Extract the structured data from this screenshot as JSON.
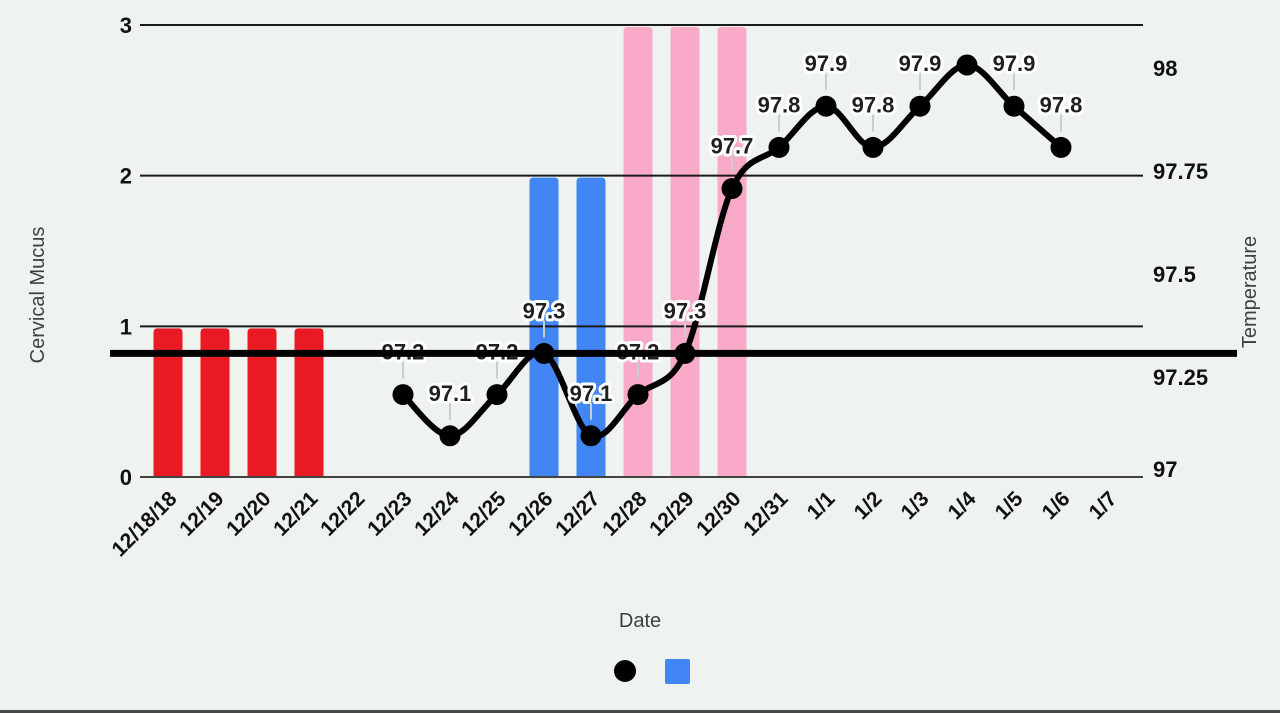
{
  "chart_data": {
    "type": "combo",
    "description": "Fertility tracking chart: cervical mucus bars (left axis) + basal body temperature line (right axis)",
    "categories": [
      "12/18/18",
      "12/19",
      "12/20",
      "12/21",
      "12/22",
      "12/23",
      "12/24",
      "12/25",
      "12/26",
      "12/27",
      "12/28",
      "12/29",
      "12/30",
      "12/31",
      "1/1",
      "1/2",
      "1/3",
      "1/4",
      "1/5",
      "1/6",
      "1/7"
    ],
    "x_axis": {
      "title": "Date"
    },
    "left_axis": {
      "title": "Cervical Mucus",
      "range": [
        0,
        3
      ],
      "ticks": [
        0,
        1,
        2,
        3
      ]
    },
    "right_axis": {
      "title": "Temperature",
      "range": [
        97,
        98
      ],
      "ticks": [
        {
          "label": "97",
          "value": 97
        },
        {
          "label": "97.25",
          "value": 97.25
        },
        {
          "label": "97.5",
          "value": 97.5
        },
        {
          "label": "97.75",
          "value": 97.75
        },
        {
          "label": "98",
          "value": 98
        }
      ]
    },
    "grid": true,
    "legend_position": "bottom",
    "series": [
      {
        "name": "cervical-mucus-bars",
        "type": "bar",
        "axis": "left",
        "default_color": "#4285f4",
        "points": [
          {
            "category": "12/18/18",
            "value": 1,
            "color": "#ea1a24"
          },
          {
            "category": "12/19",
            "value": 1,
            "color": "#ea1a24"
          },
          {
            "category": "12/20",
            "value": 1,
            "color": "#ea1a24"
          },
          {
            "category": "12/21",
            "value": 1,
            "color": "#ea1a24"
          },
          {
            "category": "12/26",
            "value": 2,
            "color": "#4285f4"
          },
          {
            "category": "12/27",
            "value": 2,
            "color": "#4285f4"
          },
          {
            "category": "12/28",
            "value": 3,
            "color": "#f9aac8"
          },
          {
            "category": "12/29",
            "value": 3,
            "color": "#f9aac8"
          },
          {
            "category": "12/30",
            "value": 3,
            "color": "#f9aac8"
          }
        ]
      },
      {
        "name": "temperature-line",
        "type": "line",
        "axis": "right",
        "color": "#000000",
        "points": [
          {
            "category": "12/23",
            "value": 97.2,
            "label": "97.2"
          },
          {
            "category": "12/24",
            "value": 97.1,
            "label": "97.1"
          },
          {
            "category": "12/25",
            "value": 97.2,
            "label": "97.2"
          },
          {
            "category": "12/26",
            "value": 97.3,
            "label": "97.3"
          },
          {
            "category": "12/27",
            "value": 97.1,
            "label": "97.1"
          },
          {
            "category": "12/28",
            "value": 97.2,
            "label": "97.2"
          },
          {
            "category": "12/29",
            "value": 97.3,
            "label": "97.3"
          },
          {
            "category": "12/30",
            "value": 97.7,
            "label": "97.7"
          },
          {
            "category": "12/31",
            "value": 97.8,
            "label": "97.8"
          },
          {
            "category": "1/1",
            "value": 97.9,
            "label": "97.9"
          },
          {
            "category": "1/2",
            "value": 97.8,
            "label": "97.8"
          },
          {
            "category": "1/3",
            "value": 97.9,
            "label": "97.9"
          },
          {
            "category": "1/4",
            "value": 98.0,
            "label": ""
          },
          {
            "category": "1/5",
            "value": 97.9,
            "label": "97.9"
          },
          {
            "category": "1/6",
            "value": 97.8,
            "label": "97.8"
          }
        ]
      }
    ],
    "coverline": {
      "value": 97.3,
      "color": "#000000"
    },
    "legend": [
      {
        "shape": "circle",
        "color": "#000000",
        "series": "temperature-line"
      },
      {
        "shape": "square",
        "color": "#4285f4",
        "series": "cervical-mucus-bars"
      }
    ],
    "colors": {
      "background": "#eff3f0",
      "gridline": "#1a1a1a",
      "baseline": "#424242",
      "annotation_stem": "#c9cec9"
    }
  }
}
